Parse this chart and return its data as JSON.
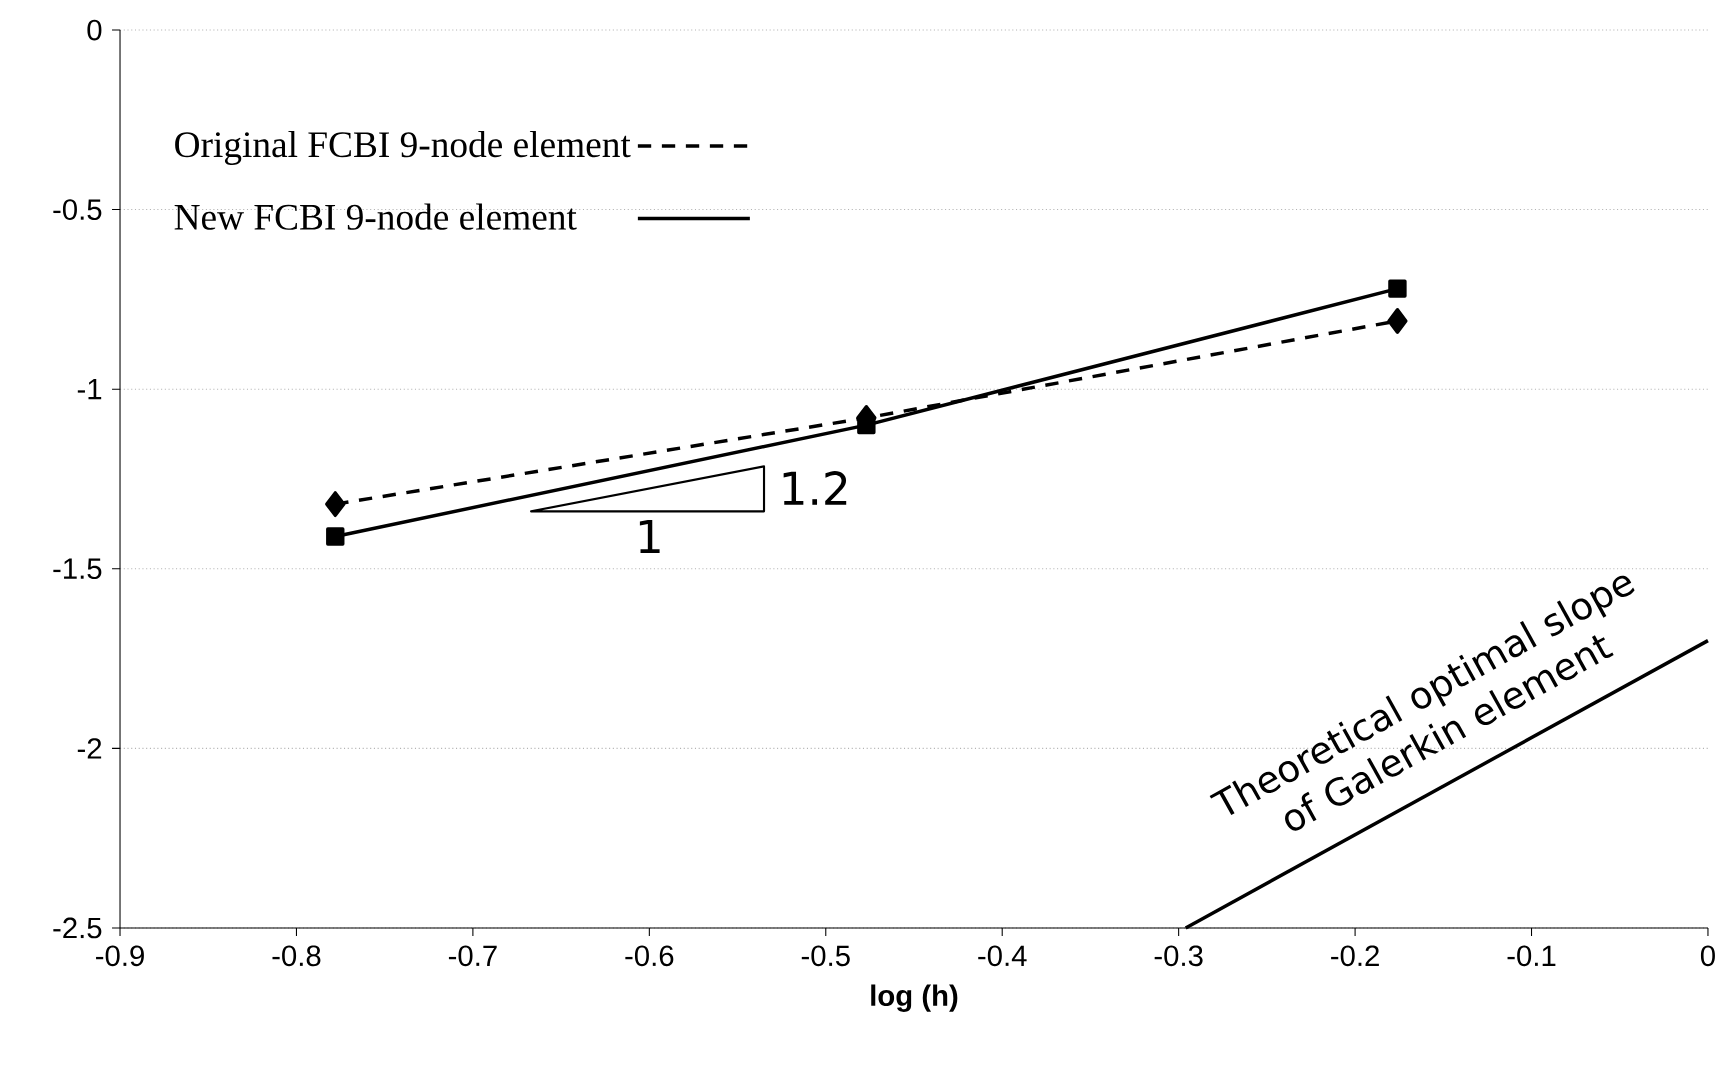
{
  "chart_data": {
    "type": "line",
    "xlabel": "log (h)",
    "xlim": [
      -0.9,
      0
    ],
    "ylim": [
      -2.5,
      0
    ],
    "xticks": [
      -0.9,
      -0.8,
      -0.7,
      -0.6,
      -0.5,
      -0.4,
      -0.3,
      -0.2,
      -0.1,
      0
    ],
    "yticks": [
      -2.5,
      -2,
      -1.5,
      -1,
      -0.5,
      0
    ],
    "grid": "y",
    "legend": "top left",
    "series": [
      {
        "name": "Original FCBI 9-node element",
        "color": "#000000",
        "x": [
          -0.778,
          -0.477,
          -0.176
        ],
        "values": [
          -1.32,
          -1.08,
          -0.81
        ],
        "marker": "diamond",
        "line_style": "dashed"
      },
      {
        "name": "New FCBI 9-node element",
        "color": "#000000",
        "x": [
          -0.778,
          -0.477,
          -0.176
        ],
        "values": [
          -1.41,
          -1.1,
          -0.72
        ],
        "marker": "square",
        "line_style": "solid"
      },
      {
        "color": "#000000",
        "x": [
          -0.296,
          0
        ],
        "values": [
          -2.5,
          -1.7
        ],
        "marker": "none",
        "line_style": "solid"
      }
    ],
    "annotations": [
      "1.2",
      "1",
      "Theoretical optimal slope of Galerkin element"
    ]
  }
}
